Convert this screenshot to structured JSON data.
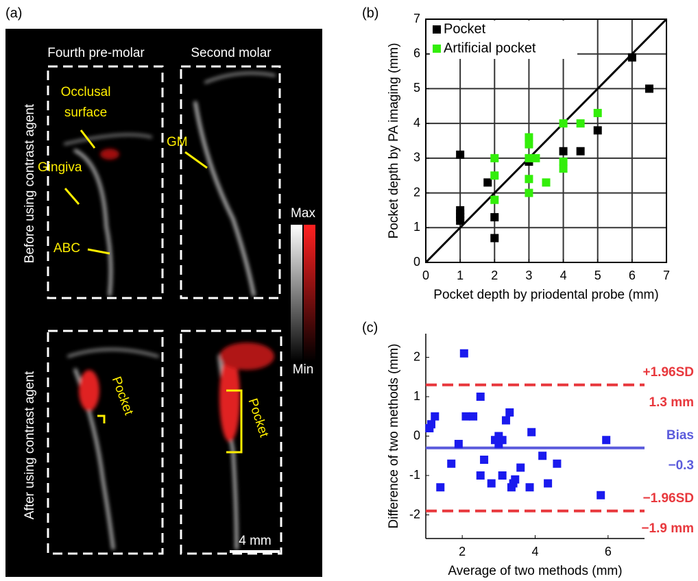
{
  "panel_a": {
    "label": "(a)",
    "columns": [
      "Fourth pre-molar",
      "Second molar"
    ],
    "rows": [
      "Before using contrast agent",
      "After using contrast agent"
    ],
    "annotations": [
      "Occlusal",
      "surface",
      "Gingiva",
      "ABC",
      "GM",
      "Pocket",
      "Pocket"
    ],
    "colorbar": {
      "max": "Max",
      "min": "Min"
    },
    "scale_bar": "4 mm"
  },
  "chart_data": [
    {
      "type": "scatter",
      "panel_label": "(b)",
      "x_label": "Pocket depth by priodental probe (mm)",
      "y_label": "Pocket depth by PA imaging (mm)",
      "xlim": [
        0,
        7
      ],
      "ylim": [
        0,
        7
      ],
      "xticks": [
        0,
        1,
        2,
        3,
        4,
        5,
        6,
        7
      ],
      "yticks": [
        0,
        1,
        2,
        3,
        4,
        5,
        6,
        7
      ],
      "grid": true,
      "identity_line": true,
      "legend": "upper-left",
      "series": [
        {
          "name": "Pocket",
          "color": "#000000",
          "x": [
            1,
            1,
            1,
            1,
            1,
            1.8,
            2,
            2,
            3,
            4,
            4.5,
            5,
            6,
            6.5
          ],
          "values": [
            3.1,
            1.5,
            1.4,
            1.3,
            1.2,
            2.3,
            1.3,
            0.7,
            2.9,
            3.2,
            3.2,
            3.8,
            5.9,
            5.0
          ]
        },
        {
          "name": "Artificial pocket",
          "color": "#33ee0a",
          "x": [
            2,
            2,
            2,
            3,
            3,
            3,
            3.2,
            3,
            3,
            3.5,
            4,
            4,
            4,
            4.5,
            5
          ],
          "values": [
            3.0,
            2.5,
            1.8,
            3.6,
            3.4,
            3.0,
            3.0,
            2.4,
            2.0,
            2.3,
            4.0,
            2.9,
            2.7,
            4.0,
            4.3
          ]
        }
      ]
    },
    {
      "type": "scatter",
      "panel_label": "(c)",
      "x_label": "Average of two methods (mm)",
      "y_label": "Difference of two methods (mm)",
      "xlim": [
        1,
        7
      ],
      "ylim": [
        -2.6,
        2.6
      ],
      "xticks": [
        2,
        4,
        6
      ],
      "yticks": [
        -2,
        -1,
        0,
        1,
        2
      ],
      "grid": false,
      "series": [
        {
          "color": "#1a1aee",
          "x": [
            1.1,
            1.15,
            1.25,
            1.4,
            1.7,
            1.9,
            2.05,
            2.1,
            2.3,
            2.5,
            2.5,
            2.6,
            2.8,
            2.9,
            3.0,
            3.0,
            3.1,
            3.1,
            3.2,
            3.3,
            3.35,
            3.4,
            3.45,
            3.6,
            3.85,
            3.9,
            4.2,
            4.35,
            4.6,
            5.8,
            5.95
          ],
          "values": [
            0.2,
            0.3,
            0.5,
            -1.3,
            -0.7,
            -0.2,
            2.1,
            0.5,
            0.5,
            1.0,
            -1.0,
            -0.6,
            -1.2,
            -0.1,
            0.0,
            -0.2,
            -1.0,
            -0.1,
            0.4,
            0.6,
            -1.3,
            -1.2,
            -1.1,
            -0.8,
            -1.3,
            0.1,
            -0.5,
            -1.2,
            -0.7,
            -1.5,
            -0.1
          ]
        }
      ],
      "reference_lines": [
        {
          "name": "+1.96SD",
          "value": 1.3,
          "value_label": "1.3 mm",
          "color": "#e8383d",
          "dashed": true
        },
        {
          "name": "Bias",
          "value": -0.3,
          "value_label": "−0.3",
          "color": "#5b5bdc",
          "dashed": false
        },
        {
          "name": "−1.96SD",
          "value": -1.9,
          "value_label": "−1.9 mm",
          "color": "#e8383d",
          "dashed": true
        }
      ]
    }
  ]
}
